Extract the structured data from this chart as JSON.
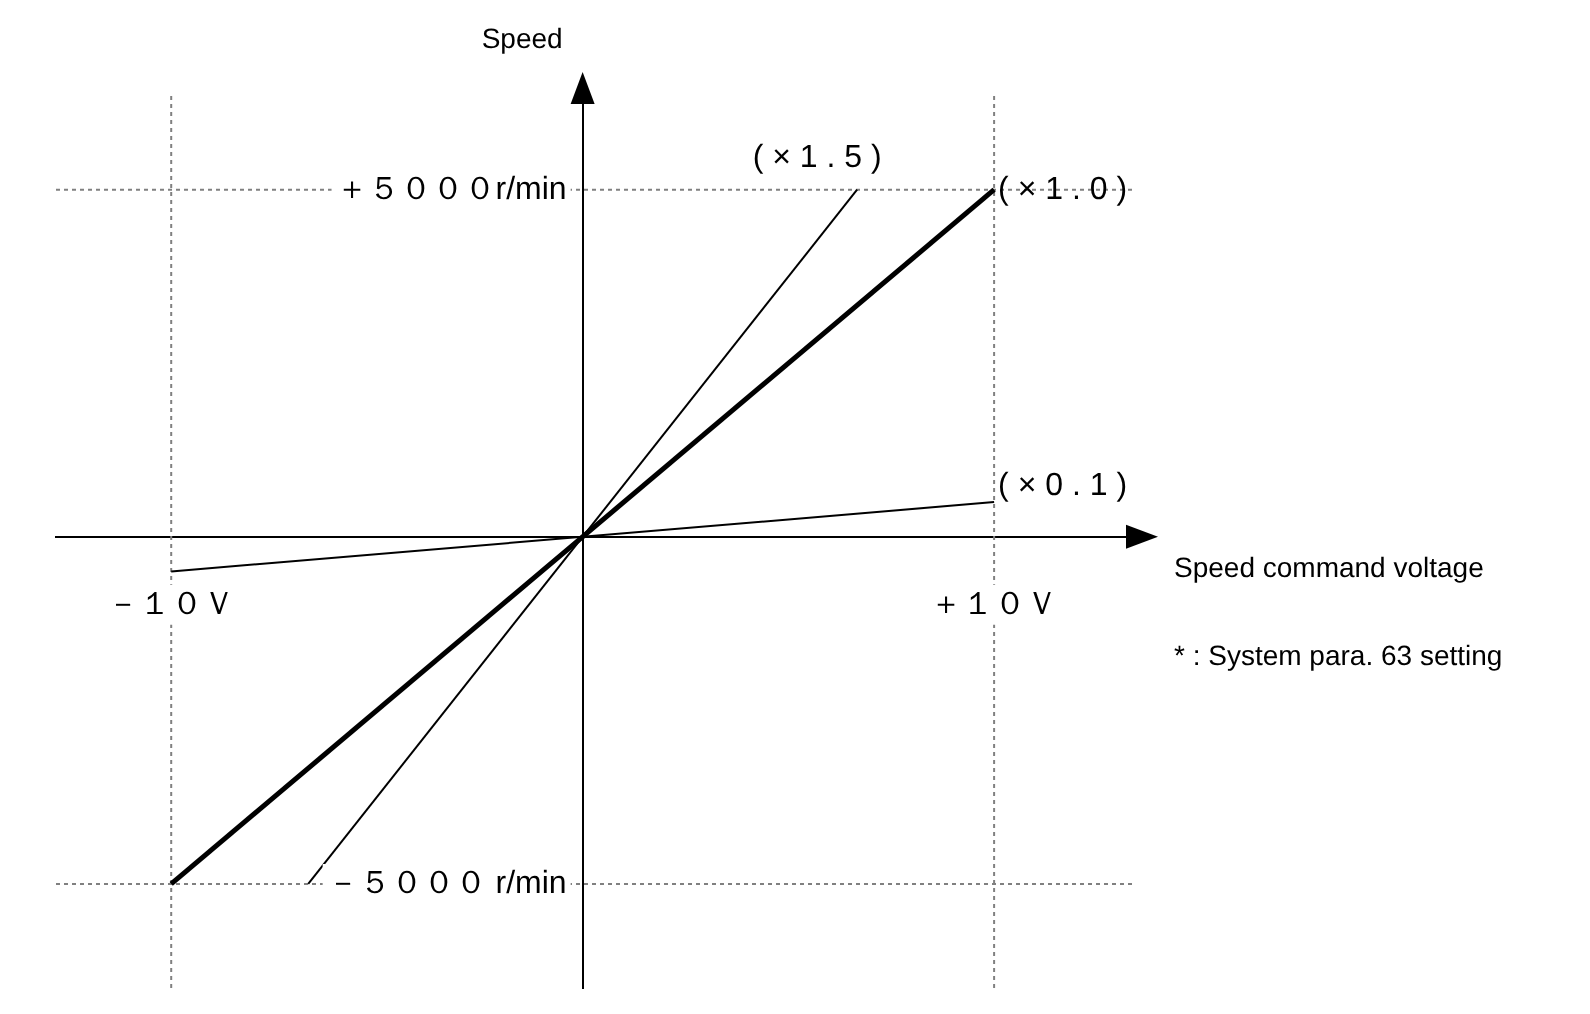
{
  "chart_data": {
    "type": "line",
    "xlabel": "Speed command voltage",
    "ylabel": "Speed",
    "xlim": [
      -12.8,
      13.4
    ],
    "ylim": [
      -6500,
      6350
    ],
    "xticks": [
      {
        "value": -10,
        "label": "－１０Ｖ"
      },
      {
        "value": 10,
        "label": "＋１０Ｖ"
      }
    ],
    "yticks": [
      {
        "value": -5000,
        "label": "－５０００ r/min"
      },
      {
        "value": 5000,
        "label": "＋５０００r/min"
      }
    ],
    "series": [
      {
        "name": "( × 1 . 0 )",
        "color": "#000000",
        "x": [
          -10,
          10
        ],
        "values": [
          -5000,
          5000
        ]
      },
      {
        "name": "( × 1 . 5 )",
        "color": "#000000",
        "x": [
          -6.67,
          6.67
        ],
        "values": [
          -5000,
          5000
        ]
      },
      {
        "name": "( × 0 . 1 )",
        "color": "#000000",
        "x": [
          -10,
          10
        ],
        "values": [
          -500,
          500
        ]
      }
    ],
    "ref_lines": [
      {
        "axis": "x",
        "value": 10,
        "color": "#808080",
        "line_style": "dotted"
      },
      {
        "axis": "x",
        "value": -10,
        "color": "#808080",
        "line_style": "dotted"
      },
      {
        "axis": "y",
        "value": 5000,
        "color": "#808080",
        "line_style": "dotted"
      },
      {
        "axis": "y",
        "value": -5000,
        "color": "#808080",
        "line_style": "dotted"
      }
    ],
    "annotations": [
      "* : System para. 63 setting"
    ],
    "grid": false,
    "legend": false,
    "marker": "none",
    "line_style": "solid"
  }
}
